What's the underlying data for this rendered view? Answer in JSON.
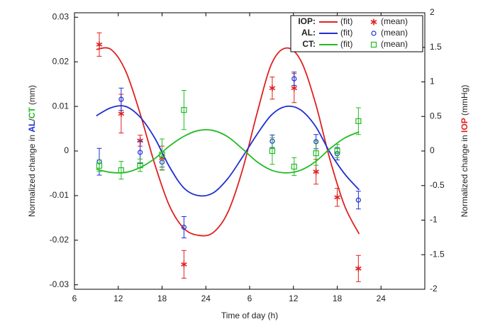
{
  "chart_data": {
    "type": "line",
    "xlabel": "Time of day (h)",
    "ylabel_parts": [
      {
        "text": "Normalized change in ",
        "color": "#222222"
      },
      {
        "text": "AL",
        "color": "#1f2fd0"
      },
      {
        "text": "/",
        "color": "#222222"
      },
      {
        "text": "CT",
        "color": "#22bb22"
      },
      {
        "text": " (mm)",
        "color": "#222222"
      }
    ],
    "y2label_parts": [
      {
        "text": "Normalized change in ",
        "color": "#222222"
      },
      {
        "text": "IOP",
        "color": "#e02020"
      },
      {
        "text": " (mmHg)",
        "color": "#222222"
      }
    ],
    "xlim": [
      6,
      54
    ],
    "xticks": [
      6,
      12,
      18,
      24,
      {
        "value": 30,
        "label": "6"
      },
      {
        "value": 36,
        "label": "12"
      },
      {
        "value": 42,
        "label": "18"
      },
      {
        "value": 48,
        "label": "24"
      }
    ],
    "ylim": [
      -0.031,
      0.031
    ],
    "yticks": [
      0.03,
      0.02,
      0.01,
      0,
      -0.01,
      -0.02,
      -0.03
    ],
    "y2lim": [
      -2,
      2
    ],
    "y2ticks": [
      2,
      1.5,
      1,
      0.5,
      0,
      -0.5,
      -1,
      -1.5,
      -2
    ],
    "grid": false,
    "legend": "upper right",
    "legend_labels": [
      "(fit)",
      "(mean)"
    ],
    "series": [
      {
        "name": "IOP:",
        "color": "#e02020",
        "axis": "y2",
        "marker": "asterisk",
        "fit": {
          "x": [
            9,
            11,
            13,
            15,
            17,
            19,
            21,
            23,
            25,
            27,
            29,
            31,
            33,
            35,
            37,
            39,
            41,
            43,
            45
          ],
          "values": [
            1.47,
            1.47,
            1.16,
            0.54,
            -0.19,
            -0.79,
            -1.12,
            -1.22,
            -1.18,
            -0.89,
            -0.28,
            0.54,
            1.26,
            1.49,
            1.31,
            0.7,
            -0.12,
            -0.79,
            -1.2
          ]
        },
        "mean": {
          "x": [
            9.4,
            12.4,
            15,
            18,
            21,
            33.1,
            36.1,
            39.1,
            42,
            44.9
          ],
          "values": [
            1.54,
            0.54,
            0.15,
            -0.1,
            -1.64,
            0.91,
            0.91,
            -0.3,
            -0.67,
            -1.7
          ],
          "errors": [
            0.17,
            0.28,
            0.08,
            0.17,
            0.2,
            0.16,
            0.21,
            0.18,
            0.13,
            0.19
          ]
        }
      },
      {
        "name": "AL:",
        "color": "#1f2fd0",
        "axis": "y",
        "marker": "circle",
        "fit": {
          "x": [
            9,
            11,
            13,
            15,
            17,
            19,
            21,
            23,
            25,
            27,
            29,
            31,
            33,
            35,
            37,
            39,
            41,
            43,
            45
          ],
          "values": [
            0.0079,
            0.0097,
            0.01,
            0.0076,
            0.0029,
            -0.0035,
            -0.0083,
            -0.01,
            -0.0094,
            -0.0062,
            -0.0014,
            0.0037,
            0.0081,
            0.01,
            0.0092,
            0.0056,
            -0.0003,
            -0.0051,
            -0.0087
          ]
        },
        "mean": {
          "x": [
            9.4,
            12.4,
            15,
            18,
            21,
            33.1,
            36.1,
            39.1,
            42,
            44.9
          ],
          "values": [
            -0.0024,
            0.0116,
            -0.0003,
            -0.0025,
            -0.0171,
            0.0022,
            0.0162,
            0.0021,
            -0.0006,
            -0.011
          ],
          "errors": [
            0.003,
            0.0025,
            0.0025,
            0.0011,
            0.0024,
            0.0014,
            0.0015,
            0.0016,
            0.0014,
            0.002
          ]
        }
      },
      {
        "name": "CT:",
        "color": "#22bb22",
        "axis": "y",
        "marker": "square",
        "fit": {
          "x": [
            9,
            11,
            13,
            15,
            17,
            19,
            21,
            23,
            25,
            27,
            29,
            31,
            33,
            35,
            37,
            39,
            41,
            43,
            45
          ],
          "values": [
            -0.0041,
            -0.0048,
            -0.0048,
            -0.0037,
            -0.0017,
            0.0011,
            0.0033,
            0.0046,
            0.0046,
            0.0032,
            0.0005,
            -0.0024,
            -0.0043,
            -0.0049,
            -0.0043,
            -0.0024,
            0.0005,
            0.0029,
            0.0043
          ]
        },
        "mean": {
          "x": [
            9.4,
            12.4,
            15,
            18,
            21,
            33.1,
            36.1,
            39.1,
            42,
            44.9
          ],
          "values": [
            -0.0033,
            -0.0043,
            -0.0032,
            -0.0008,
            0.0092,
            0,
            -0.0035,
            -0.0005,
            0,
            0.0067
          ],
          "errors": [
            0.0013,
            0.002,
            0.0014,
            0.0035,
            0.0044,
            0.003,
            0.002,
            0.0027,
            0.0015,
            0.003
          ]
        }
      }
    ]
  }
}
